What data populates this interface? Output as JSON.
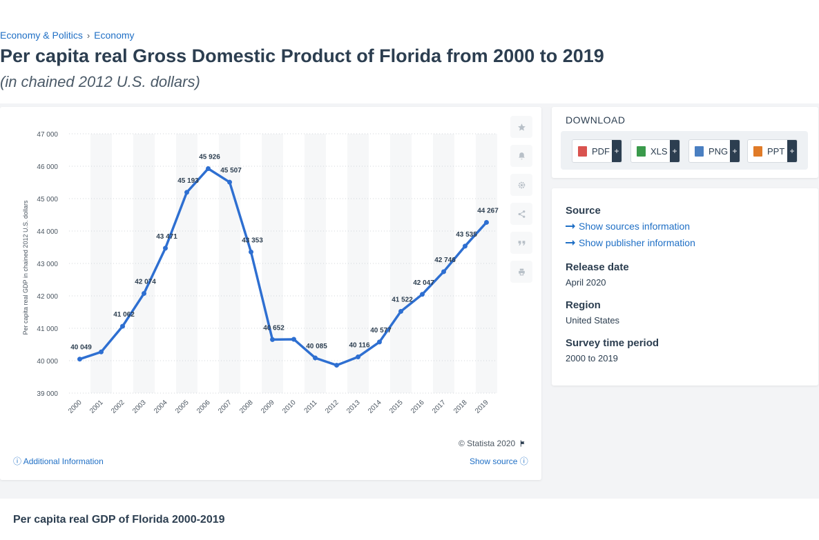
{
  "breadcrumb": {
    "item1": "Economy & Politics",
    "separator": "›",
    "item2": "Economy"
  },
  "title": "Per capita real Gross Domestic Product of Florida from 2000 to 2019",
  "subtitle": "(in chained 2012 U.S. dollars)",
  "chart_data": {
    "type": "line",
    "categories": [
      "2000",
      "2001",
      "2002",
      "2003",
      "2004",
      "2005",
      "2006",
      "2007",
      "2008",
      "2009",
      "2010",
      "2011",
      "2012",
      "2013",
      "2014",
      "2015",
      "2016",
      "2017",
      "2018",
      "2019"
    ],
    "values": [
      40049,
      40270,
      41062,
      42074,
      43471,
      45193,
      45926,
      45507,
      43353,
      40652,
      40660,
      40085,
      39860,
      40116,
      40577,
      41522,
      42047,
      42746,
      43535,
      44267
    ],
    "data_labels": [
      "40 049",
      "",
      "41 062",
      "42 074",
      "43 471",
      "45 193",
      "45 926",
      "45 507",
      "43 353",
      "40 652",
      "",
      "40 085",
      "",
      "40 116",
      "40 577",
      "41 522",
      "42 047",
      "42 746",
      "43 535",
      "44 267"
    ],
    "ylabel": "Per capita real GDP in chained 2012 U.S. dollars",
    "xlabel": "",
    "ylim": [
      39000,
      47000
    ],
    "yticks": [
      39000,
      40000,
      41000,
      42000,
      43000,
      44000,
      45000,
      46000,
      47000
    ],
    "ytick_labels": [
      "39 000",
      "40 000",
      "41 000",
      "42 000",
      "43 000",
      "44 000",
      "45 000",
      "46 000",
      "47 000"
    ],
    "grid": true,
    "line_color": "#2e6fd1"
  },
  "tools": {
    "star": "star-icon",
    "bell": "bell-icon",
    "gear": "gear-icon",
    "share": "share-icon",
    "quote": "quote-icon",
    "print": "print-icon"
  },
  "footer": {
    "copyright": "© Statista 2020",
    "additional_info": "Additional Information",
    "show_source": "Show source"
  },
  "download": {
    "title": "DOWNLOAD",
    "buttons": [
      {
        "label": "PDF",
        "color": "#d9534f"
      },
      {
        "label": "XLS",
        "color": "#3a9a4b"
      },
      {
        "label": "PNG",
        "color": "#4a7fc1"
      },
      {
        "label": "PPT",
        "color": "#e07b28"
      }
    ],
    "plus": "+"
  },
  "info": {
    "source_head": "Source",
    "show_sources": "Show sources information",
    "show_publisher": "Show publisher information",
    "release_head": "Release date",
    "release_val": "April 2020",
    "region_head": "Region",
    "region_val": "United States",
    "period_head": "Survey time period",
    "period_val": "2000 to 2019"
  },
  "bottom": {
    "title": "Per capita real GDP of Florida 2000-2019"
  }
}
